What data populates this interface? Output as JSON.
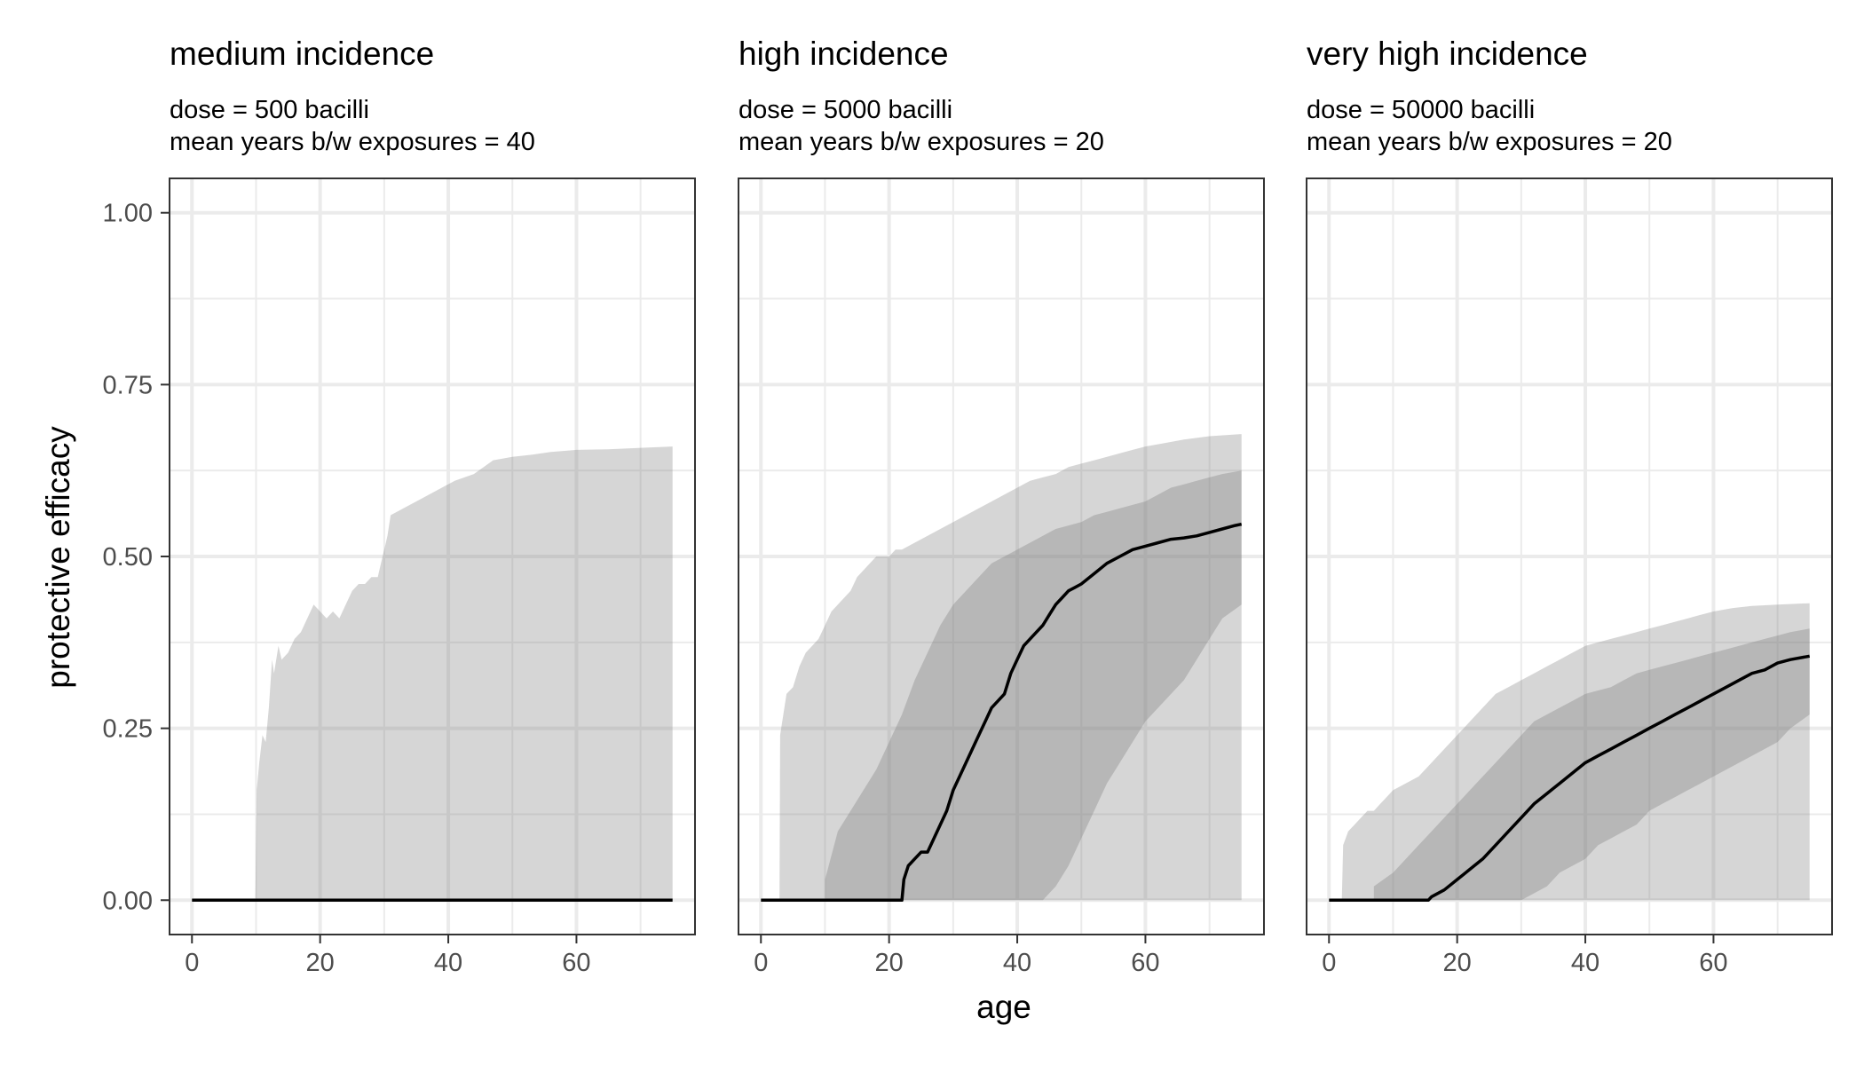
{
  "chart_data": [
    {
      "type": "area",
      "title": "medium incidence",
      "subtitle": [
        "dose = 500 bacilli",
        "mean years b/w exposures = 40"
      ],
      "xlabel": "age",
      "ylabel": "protective efficacy",
      "xlim": [
        -3.5,
        78.5
      ],
      "ylim": [
        -0.05,
        1.05
      ],
      "xticks": [
        "0",
        "20",
        "40",
        "60"
      ],
      "yticks": [
        "0.00",
        "0.25",
        "0.50",
        "0.75",
        "1.00"
      ],
      "grid": true,
      "outer_band": {
        "x": [
          0,
          9.9,
          10.1,
          10.5,
          11,
          11.5,
          12,
          12.5,
          12.8,
          13.5,
          14,
          15,
          16,
          17,
          18,
          19,
          20,
          21,
          22,
          23,
          24,
          25,
          26,
          27,
          28,
          29,
          29.5,
          30,
          30.5,
          31,
          33,
          35,
          37,
          39,
          41,
          44,
          47,
          50,
          53,
          56,
          60,
          65,
          70,
          75
        ],
        "lower": [
          0,
          0,
          0,
          0,
          0,
          0,
          0,
          0,
          0,
          0,
          0,
          0,
          0,
          0,
          0,
          0,
          0,
          0,
          0,
          0,
          0,
          0,
          0,
          0,
          0,
          0,
          0,
          0,
          0,
          0,
          0,
          0,
          0,
          0,
          0,
          0,
          0,
          0,
          0,
          0,
          0,
          0,
          0,
          0
        ],
        "upper": [
          0,
          0,
          0.16,
          0.2,
          0.24,
          0.23,
          0.28,
          0.35,
          0.33,
          0.37,
          0.35,
          0.36,
          0.38,
          0.39,
          0.41,
          0.43,
          0.42,
          0.41,
          0.42,
          0.41,
          0.43,
          0.45,
          0.46,
          0.46,
          0.47,
          0.47,
          0.49,
          0.51,
          0.53,
          0.56,
          0.57,
          0.58,
          0.59,
          0.6,
          0.61,
          0.62,
          0.64,
          0.645,
          0.648,
          0.652,
          0.655,
          0.656,
          0.658,
          0.66
        ]
      },
      "inner_band": null,
      "median": {
        "x": [
          0,
          75
        ],
        "y": [
          0,
          0
        ]
      }
    },
    {
      "type": "area",
      "title": "high incidence",
      "subtitle": [
        "dose = 5000 bacilli",
        "mean years b/w exposures = 20"
      ],
      "xlabel": "age",
      "ylabel": "protective efficacy",
      "xlim": [
        -3.5,
        78.5
      ],
      "ylim": [
        -0.05,
        1.05
      ],
      "xticks": [
        "0",
        "20",
        "40",
        "60"
      ],
      "yticks": [
        "0.00",
        "0.25",
        "0.50",
        "0.75",
        "1.00"
      ],
      "grid": true,
      "outer_band": {
        "x": [
          0,
          2.9,
          3,
          3.5,
          4,
          5,
          6,
          7,
          8,
          9,
          10,
          11,
          12,
          13,
          14,
          15,
          16,
          17,
          18,
          19,
          20,
          21,
          22,
          24,
          26,
          28,
          30,
          32,
          34,
          36,
          38,
          40,
          42,
          44,
          46,
          48,
          50,
          52,
          54,
          56,
          58,
          60,
          63,
          66,
          70,
          75
        ],
        "lower": [
          0,
          0,
          0,
          0,
          0,
          0,
          0,
          0,
          0,
          0,
          0,
          0,
          0,
          0,
          0,
          0,
          0,
          0,
          0,
          0,
          0,
          0,
          0,
          0,
          0,
          0,
          0,
          0,
          0,
          0,
          0,
          0,
          0,
          0,
          0,
          0,
          0,
          0,
          0,
          0,
          0,
          0,
          0,
          0,
          0,
          0
        ],
        "upper": [
          0,
          0,
          0.24,
          0.27,
          0.3,
          0.31,
          0.34,
          0.36,
          0.37,
          0.38,
          0.4,
          0.42,
          0.43,
          0.44,
          0.45,
          0.47,
          0.48,
          0.49,
          0.5,
          0.5,
          0.5,
          0.51,
          0.51,
          0.52,
          0.53,
          0.54,
          0.55,
          0.56,
          0.57,
          0.58,
          0.59,
          0.6,
          0.61,
          0.615,
          0.62,
          0.63,
          0.635,
          0.64,
          0.645,
          0.65,
          0.655,
          0.66,
          0.665,
          0.67,
          0.675,
          0.678
        ]
      },
      "inner_band": {
        "x": [
          10,
          12,
          14,
          16,
          18,
          20,
          22,
          24,
          26,
          28,
          30,
          32,
          34,
          36,
          38,
          40,
          42,
          44,
          45,
          46,
          48,
          50,
          52,
          54,
          56,
          58,
          60,
          62,
          64,
          66,
          68,
          70,
          72,
          75
        ],
        "lower": [
          0,
          0,
          0,
          0,
          0,
          0,
          0,
          0,
          0,
          0,
          0,
          0,
          0,
          0,
          0,
          0,
          0,
          0,
          0.01,
          0.02,
          0.05,
          0.09,
          0.13,
          0.17,
          0.2,
          0.23,
          0.26,
          0.28,
          0.3,
          0.32,
          0.35,
          0.38,
          0.41,
          0.43
        ],
        "upper": [
          0.03,
          0.1,
          0.13,
          0.16,
          0.19,
          0.23,
          0.27,
          0.32,
          0.36,
          0.4,
          0.43,
          0.45,
          0.47,
          0.49,
          0.5,
          0.51,
          0.52,
          0.53,
          0.535,
          0.54,
          0.545,
          0.55,
          0.56,
          0.565,
          0.57,
          0.575,
          0.58,
          0.59,
          0.6,
          0.605,
          0.61,
          0.615,
          0.62,
          0.625
        ]
      },
      "median": {
        "x": [
          0,
          22,
          22.3,
          23,
          24,
          25,
          26,
          27,
          28,
          29,
          30,
          31,
          32,
          33,
          34,
          35,
          36,
          37,
          38,
          39,
          40,
          41,
          42,
          43,
          44,
          45,
          46,
          47,
          48,
          49,
          50,
          52,
          54,
          56,
          58,
          60,
          62,
          64,
          66,
          68,
          70,
          72,
          74,
          75
        ],
        "y": [
          0,
          0,
          0.03,
          0.05,
          0.06,
          0.07,
          0.07,
          0.09,
          0.11,
          0.13,
          0.16,
          0.18,
          0.2,
          0.22,
          0.24,
          0.26,
          0.28,
          0.29,
          0.3,
          0.33,
          0.35,
          0.37,
          0.38,
          0.39,
          0.4,
          0.415,
          0.43,
          0.44,
          0.45,
          0.455,
          0.46,
          0.475,
          0.49,
          0.5,
          0.51,
          0.515,
          0.52,
          0.525,
          0.527,
          0.53,
          0.535,
          0.54,
          0.545,
          0.547
        ]
      }
    },
    {
      "type": "area",
      "title": "very high incidence",
      "subtitle": [
        "dose = 50000 bacilli",
        "mean years b/w exposures = 20"
      ],
      "xlabel": "age",
      "ylabel": "protective efficacy",
      "xlim": [
        -3.5,
        78.5
      ],
      "ylim": [
        -0.05,
        1.05
      ],
      "xticks": [
        "0",
        "20",
        "40",
        "60"
      ],
      "yticks": [
        "0.00",
        "0.25",
        "0.50",
        "0.75",
        "1.00"
      ],
      "grid": true,
      "outer_band": {
        "x": [
          0,
          2,
          2.2,
          3,
          4,
          5,
          6,
          7,
          8,
          9,
          10,
          12,
          14,
          16,
          18,
          20,
          22,
          24,
          26,
          28,
          30,
          32,
          34,
          36,
          38,
          40,
          42,
          44,
          46,
          48,
          50,
          52,
          54,
          56,
          58,
          60,
          63,
          66,
          70,
          75
        ],
        "lower": [
          0,
          0,
          0,
          0,
          0,
          0,
          0,
          0,
          0,
          0,
          0,
          0,
          0,
          0,
          0,
          0,
          0,
          0,
          0,
          0,
          0,
          0,
          0,
          0,
          0,
          0,
          0,
          0,
          0,
          0,
          0,
          0,
          0,
          0,
          0,
          0,
          0,
          0,
          0,
          0
        ],
        "upper": [
          0,
          0,
          0.08,
          0.1,
          0.11,
          0.12,
          0.13,
          0.13,
          0.14,
          0.15,
          0.16,
          0.17,
          0.18,
          0.2,
          0.22,
          0.24,
          0.26,
          0.28,
          0.3,
          0.31,
          0.32,
          0.33,
          0.34,
          0.35,
          0.36,
          0.37,
          0.375,
          0.38,
          0.385,
          0.39,
          0.395,
          0.4,
          0.405,
          0.41,
          0.415,
          0.42,
          0.425,
          0.428,
          0.43,
          0.432
        ]
      },
      "inner_band": {
        "x": [
          7,
          10,
          12,
          14,
          16,
          18,
          20,
          22,
          24,
          26,
          28,
          30,
          32,
          34,
          36,
          38,
          40,
          42,
          44,
          46,
          48,
          50,
          52,
          54,
          56,
          58,
          60,
          62,
          64,
          66,
          68,
          70,
          72,
          75
        ],
        "lower": [
          0,
          0,
          0,
          0,
          0,
          0,
          0,
          0,
          0,
          0,
          0,
          0,
          0.01,
          0.02,
          0.04,
          0.05,
          0.06,
          0.08,
          0.09,
          0.1,
          0.11,
          0.13,
          0.14,
          0.15,
          0.16,
          0.17,
          0.18,
          0.19,
          0.2,
          0.21,
          0.22,
          0.23,
          0.25,
          0.27
        ],
        "upper": [
          0.02,
          0.04,
          0.06,
          0.08,
          0.1,
          0.12,
          0.14,
          0.16,
          0.18,
          0.2,
          0.22,
          0.24,
          0.26,
          0.27,
          0.28,
          0.29,
          0.3,
          0.305,
          0.31,
          0.32,
          0.33,
          0.335,
          0.34,
          0.345,
          0.35,
          0.355,
          0.36,
          0.365,
          0.37,
          0.375,
          0.38,
          0.385,
          0.39,
          0.395
        ]
      },
      "median": {
        "x": [
          0,
          15.5,
          16,
          18,
          20,
          22,
          24,
          26,
          28,
          30,
          32,
          34,
          36,
          38,
          40,
          42,
          44,
          46,
          48,
          50,
          52,
          54,
          56,
          58,
          60,
          62,
          64,
          66,
          68,
          70,
          72,
          75
        ],
        "y": [
          0,
          0,
          0.005,
          0.015,
          0.03,
          0.045,
          0.06,
          0.08,
          0.1,
          0.12,
          0.14,
          0.155,
          0.17,
          0.185,
          0.2,
          0.21,
          0.22,
          0.23,
          0.24,
          0.25,
          0.26,
          0.27,
          0.28,
          0.29,
          0.3,
          0.31,
          0.32,
          0.33,
          0.335,
          0.345,
          0.35,
          0.355
        ]
      }
    }
  ]
}
